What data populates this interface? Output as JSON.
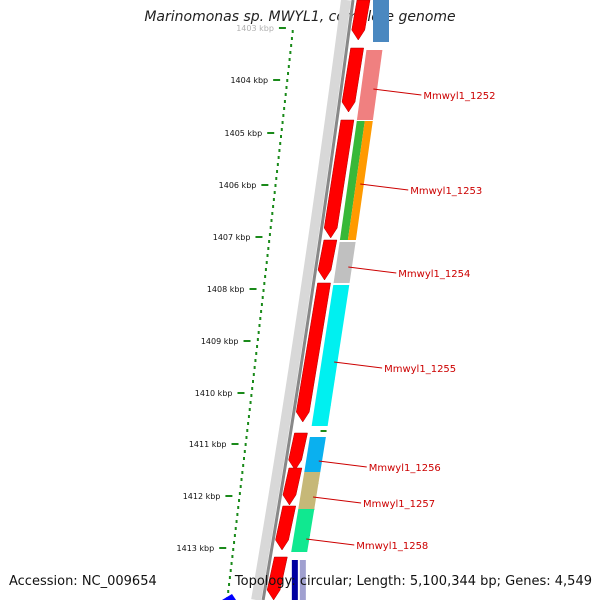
{
  "title": "Marinomonas sp. MWYL1, complete genome",
  "footer": {
    "accession": "Accession: NC_009654",
    "summary": "Topology: circular; Length: 5,100,344 bp; Genes: 4,549"
  },
  "colors": {
    "forward_cds": "#ff0000",
    "backbone": "#888888",
    "ruler_dots": "#1a8a1a",
    "label": "#cc0000"
  },
  "ruler": {
    "unit": "kbp",
    "ticks": [
      {
        "text": "1403 kbp"
      },
      {
        "text": "1404 kbp"
      },
      {
        "text": "1405 kbp"
      },
      {
        "text": "1406 kbp"
      },
      {
        "text": "1407 kbp"
      },
      {
        "text": "1408 kbp"
      },
      {
        "text": "1409 kbp"
      },
      {
        "text": "1410 kbp"
      },
      {
        "text": "1411 kbp"
      },
      {
        "text": "1412 kbp"
      },
      {
        "text": "1413 kbp"
      }
    ]
  },
  "genes": [
    {
      "label": "Mmwyl1_1252",
      "color": "#f08080"
    },
    {
      "label": "Mmwyl1_1253",
      "color": "#38b838"
    },
    {
      "label": "Mmwyl1_1254",
      "color": "#c0c0c0"
    },
    {
      "label": "Mmwyl1_1255",
      "color": "#00f0f0"
    },
    {
      "label": "Mmwyl1_1256",
      "color": "#0ab0ef"
    },
    {
      "label": "Mmwyl1_1257",
      "color": "#c6b878"
    },
    {
      "label": "Mmwyl1_1258",
      "color": "#10e890"
    }
  ]
}
